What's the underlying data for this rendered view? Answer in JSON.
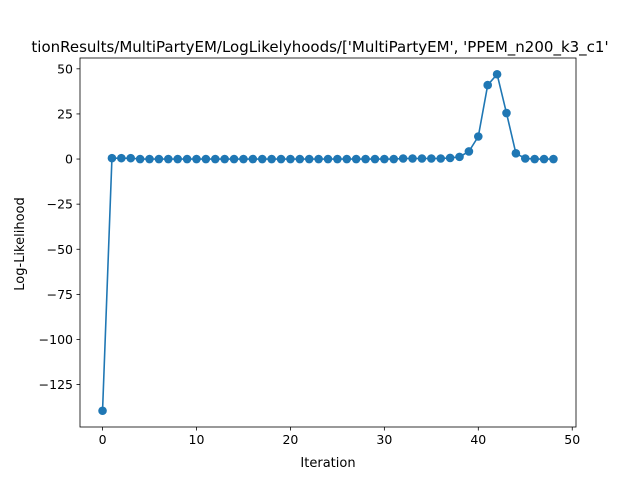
{
  "chart_data": {
    "type": "line",
    "title": "tionResults/MultiPartyEM/LogLikelyhoods/['MultiPartyEM', 'PPEM_n200_k3_c1'",
    "xlabel": "Iteration",
    "ylabel": "Log-Likelihood",
    "xlim": [
      -2.4,
      50.4
    ],
    "ylim": [
      -148.5,
      56
    ],
    "xticks": [
      0,
      10,
      20,
      30,
      40,
      50
    ],
    "xtick_labels": [
      "0",
      "10",
      "20",
      "30",
      "40",
      "50"
    ],
    "yticks": [
      50,
      25,
      0,
      -25,
      -50,
      -75,
      -100,
      -125
    ],
    "ytick_labels": [
      "50",
      "25",
      "0",
      "−25",
      "−50",
      "−75",
      "−100",
      "−125"
    ],
    "grid": false,
    "marker": "circle",
    "color": "#1f77b4",
    "series": [
      {
        "x": [
          0,
          1,
          2,
          3,
          4,
          5,
          6,
          7,
          8,
          9,
          10,
          11,
          12,
          13,
          14,
          15,
          16,
          17,
          18,
          19,
          20,
          21,
          22,
          23,
          24,
          25,
          26,
          27,
          28,
          29,
          30,
          31,
          32,
          33,
          34,
          35,
          36,
          37,
          38,
          39,
          40,
          41,
          42,
          43,
          44,
          45,
          46,
          47,
          48
        ],
        "y": [
          -139.5,
          0.5,
          0.5,
          0.5,
          0,
          0,
          0,
          0,
          0,
          0,
          0,
          0,
          0,
          0,
          0,
          0,
          0,
          0,
          0,
          0,
          0,
          0,
          0,
          0,
          0,
          0,
          0,
          0,
          0,
          0,
          0,
          0,
          0.3,
          0.3,
          0.3,
          0.3,
          0.3,
          0.6,
          1.2,
          4.2,
          12.5,
          41,
          47,
          25.5,
          3.2,
          0.3,
          0,
          0,
          0
        ]
      }
    ]
  }
}
